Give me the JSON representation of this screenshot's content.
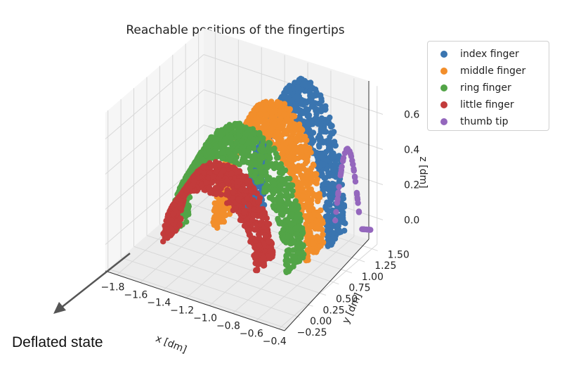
{
  "chart_data": {
    "type": "scatter",
    "projection": "3d",
    "title": "Reachable positions of the fingertips",
    "xlabel": "x [dm]",
    "ylabel": "y [dm]",
    "zlabel": "z [dm]",
    "xlim": [
      -1.9,
      -0.35
    ],
    "ylim": [
      -0.3,
      1.6
    ],
    "zlim": [
      -0.15,
      0.75
    ],
    "xticks": [
      "−1.8",
      "−1.6",
      "−1.4",
      "−1.2",
      "−1.0",
      "−0.8",
      "−0.6",
      "−0.4"
    ],
    "yticks": [
      "−0.25",
      "0.00",
      "0.25",
      "0.50",
      "0.75",
      "1.00",
      "1.25",
      "1.50"
    ],
    "zticks": [
      "0.0",
      "0.2",
      "0.4",
      "0.6"
    ],
    "grid": true,
    "legend_position": "upper right, outside plot",
    "series": [
      {
        "name": "index finger",
        "color": "#3a75b0",
        "shape": "arc",
        "x_span": [
          -1.25,
          -0.55
        ],
        "y_center": 1.15,
        "z_peak": 0.75,
        "z_base": -0.05
      },
      {
        "name": "middle finger",
        "color": "#f28e2b",
        "shape": "arc",
        "x_span": [
          -1.45,
          -0.65
        ],
        "y_center": 0.95,
        "z_peak": 0.65,
        "z_base": -0.1
      },
      {
        "name": "ring finger",
        "color": "#52a447",
        "shape": "arc",
        "x_span": [
          -1.75,
          -0.75
        ],
        "y_center": 0.8,
        "z_peak": 0.5,
        "z_base": -0.15
      },
      {
        "name": "little finger",
        "color": "#c23b3b",
        "shape": "arc",
        "x_span": [
          -1.75,
          -0.95
        ],
        "y_center": 0.65,
        "z_peak": 0.3,
        "z_base": -0.15
      },
      {
        "name": "thumb tip",
        "color": "#9467bd",
        "shape": "curve",
        "x_span": [
          -0.6,
          -0.35
        ],
        "y_center": 1.3,
        "z_peak": 0.45,
        "z_base": 0.0
      }
    ]
  },
  "annotation": {
    "text": "Deflated state"
  }
}
